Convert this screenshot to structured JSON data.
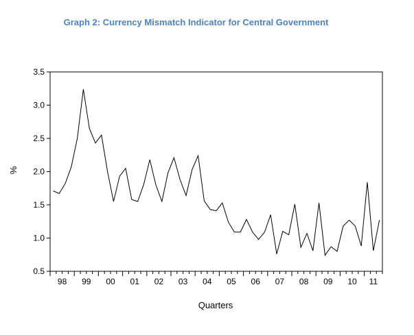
{
  "chart_data": {
    "type": "line",
    "title": "Graph 2: Currency Mismatch Indicator for Central Government",
    "xlabel": "Quarters",
    "ylabel": "%",
    "ylim": [
      0.5,
      3.5
    ],
    "yticks": [
      "0.5",
      "1.0",
      "1.5",
      "2.0",
      "2.5",
      "3.0",
      "3.5"
    ],
    "ytick_values": [
      0.5,
      1.0,
      1.5,
      2.0,
      2.5,
      3.0,
      3.5
    ],
    "year_labels": [
      "98",
      "99",
      "00",
      "01",
      "02",
      "03",
      "04",
      "05",
      "06",
      "07",
      "08",
      "09",
      "10",
      "11"
    ],
    "grid": false,
    "series": [
      {
        "name": "Currency Mismatch Indicator",
        "color": "#000000",
        "values": [
          1.71,
          1.67,
          1.82,
          2.07,
          2.5,
          3.24,
          2.65,
          2.43,
          2.55,
          2.0,
          1.55,
          1.93,
          2.05,
          1.58,
          1.55,
          1.81,
          2.18,
          1.8,
          1.55,
          1.98,
          2.21,
          1.88,
          1.64,
          2.03,
          2.24,
          1.56,
          1.43,
          1.41,
          1.53,
          1.24,
          1.09,
          1.09,
          1.28,
          1.09,
          0.98,
          1.09,
          1.35,
          0.76,
          1.1,
          1.05,
          1.51,
          0.86,
          1.07,
          0.81,
          1.53,
          0.74,
          0.87,
          0.8,
          1.18,
          1.27,
          1.18,
          0.88,
          1.84,
          0.81,
          1.27
        ]
      }
    ]
  }
}
